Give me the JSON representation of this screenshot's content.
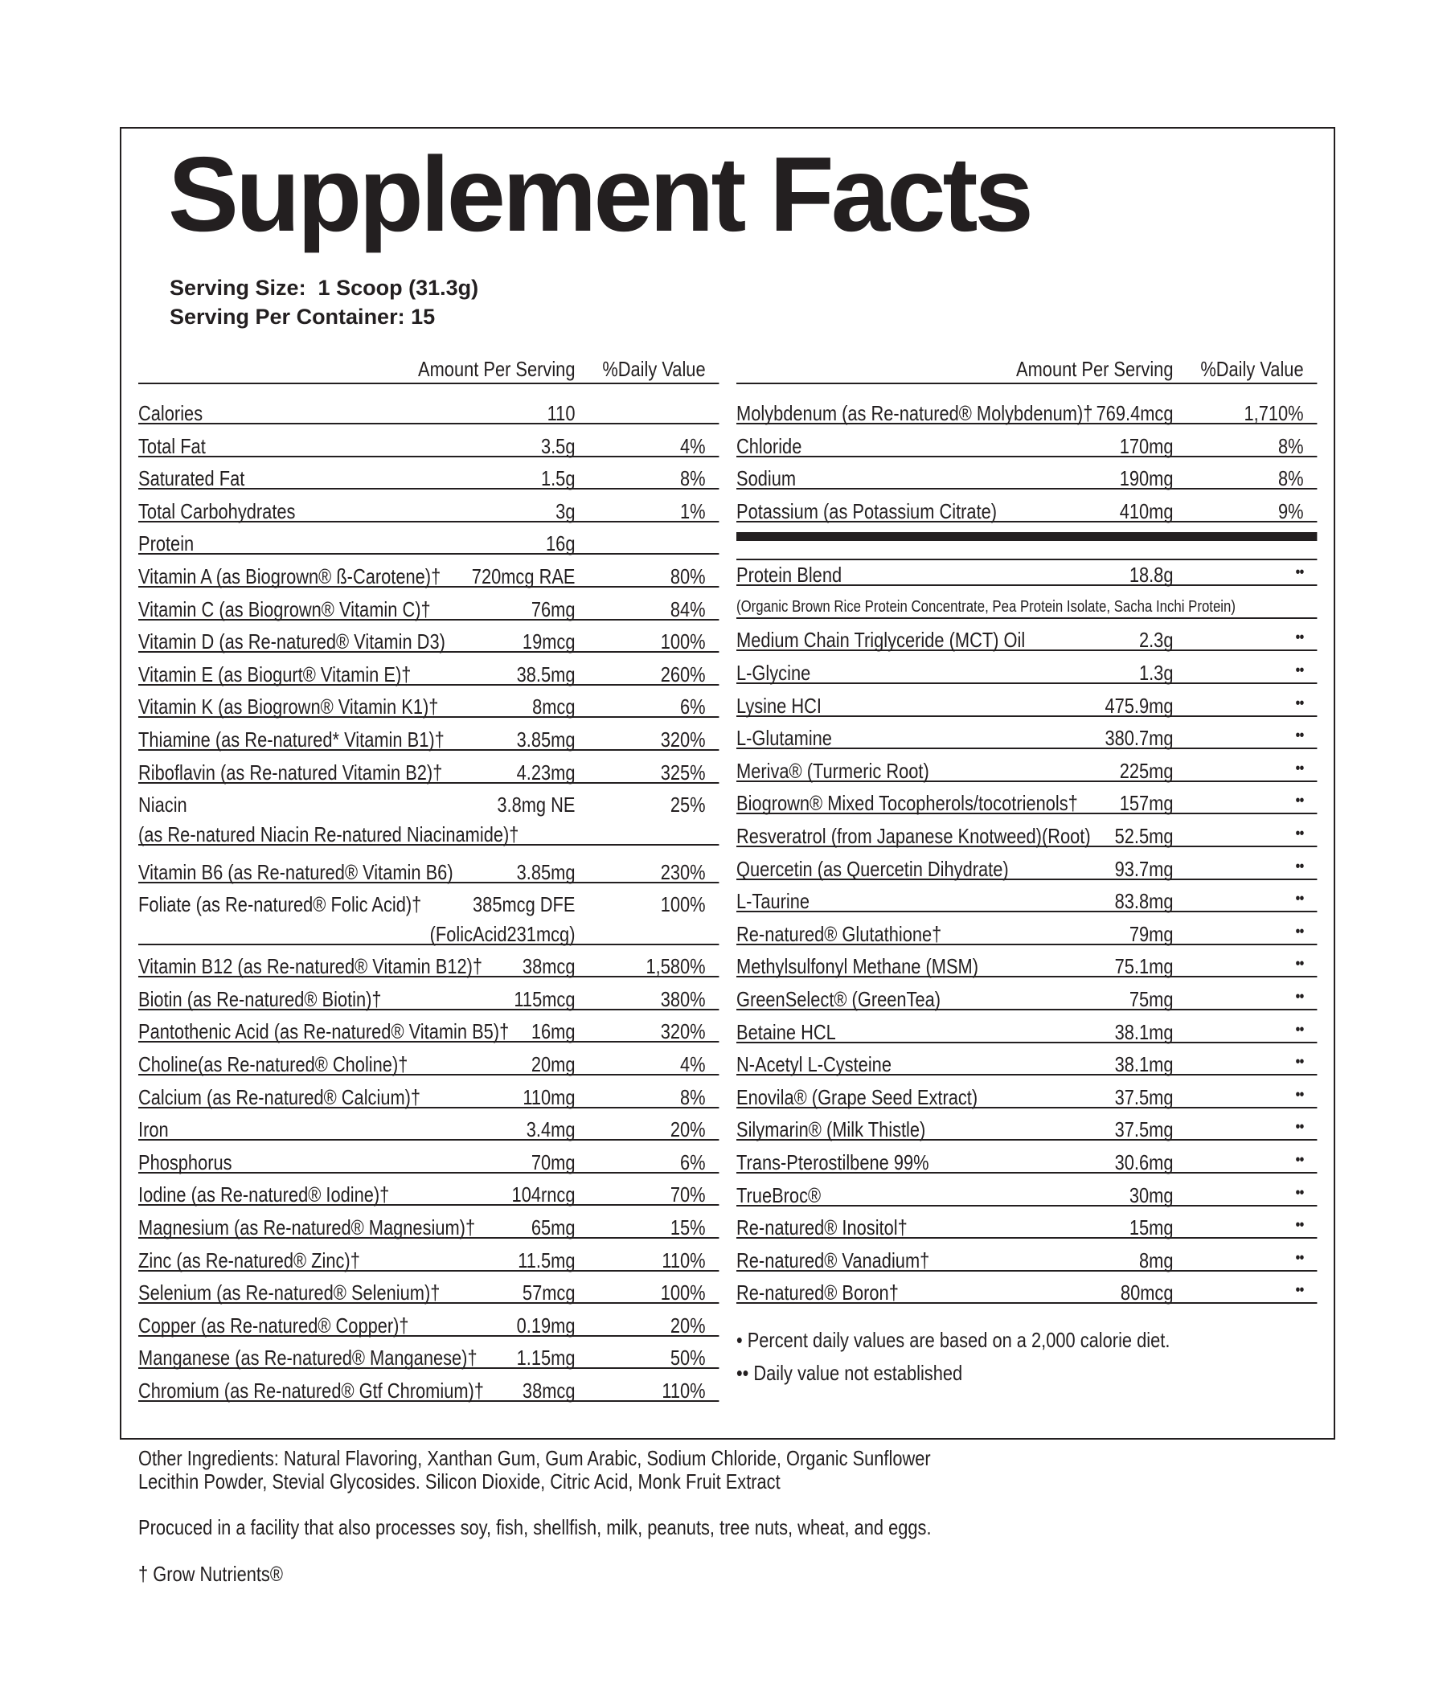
{
  "title": "Supplement Facts",
  "serving_size": "Serving Size:  1 Scoop (31.3g)",
  "servings_per_container": "Serving Per Container: 15",
  "header": {
    "amount": "Amount Per Serving",
    "dv": "%Daily Value"
  },
  "left_rows": [
    {
      "name": "Calories",
      "amount": "110",
      "dv": ""
    },
    {
      "name": "Total Fat",
      "amount": "3.5g",
      "dv": "4%"
    },
    {
      "name": "   Saturated Fat",
      "amount": "1.5g",
      "dv": "8%"
    },
    {
      "name": "Total Carbohydrates",
      "amount": "3g",
      "dv": "1%"
    },
    {
      "name": "Protein",
      "amount": "16g",
      "dv": ""
    },
    {
      "name": "Vitamin A (as Biogrown® ß-Carotene)†",
      "amount": "720mcg RAE",
      "dv": "80%"
    },
    {
      "name": "Vitamin C (as Biogrown® Vitamin C)†",
      "amount": "76mg",
      "dv": "84%"
    },
    {
      "name": "Vitamin D (as Re-natured® Vitamin D3)",
      "amount": "19mcg",
      "dv": "100%"
    },
    {
      "name": "Vitamin E (as Biogurt® Vitamin E)†",
      "amount": "38.5mg",
      "dv": "260%"
    },
    {
      "name": "Vitamin K (as Biogrown® Vitamin K1)†",
      "amount": "8mcg",
      "dv": "6%"
    },
    {
      "name": "Thiamine (as Re-natured* Vitamin B1)†",
      "amount": "3.85mg",
      "dv": "320%"
    },
    {
      "name": "Riboflavin (as Re-natured Vitamin B2)†",
      "amount": "4.23mg",
      "dv": "325%"
    },
    {
      "name": "Niacin",
      "name2": "(as Re-natured Niacin Re-natured Niacinamide)†",
      "amount": "3.8mg  NE",
      "dv": "25%"
    },
    {
      "name": "Vitamin B6 (as Re-natured® Vitamin B6)",
      "amount": "3.85mg",
      "dv": "230%"
    },
    {
      "name": "Foliate (as Re-natured® Folic Acid)†",
      "amount": "385mcg DFE",
      "amount2": "(FolicAcid231mcg)",
      "dv": "100%"
    },
    {
      "name": "Vitamin B12 (as Re-natured® Vitamin B12)†",
      "amount": "38mcg",
      "dv": "1,580%"
    },
    {
      "name": "Biotin (as Re-natured® Biotin)†",
      "amount": "115mcg",
      "dv": "380%"
    },
    {
      "name": "Pantothenic  Acid (as Re-natured® Vitamin B5)†",
      "amount": "16mg",
      "dv": "320%"
    },
    {
      "name": "Choline(as Re-natured® Choline)†",
      "amount": "20mg",
      "dv": "4%"
    },
    {
      "name": "Calcium (as Re-natured® Calcium)†",
      "amount": "110mg",
      "dv": "8%"
    },
    {
      "name": "Iron",
      "amount": "3.4mg",
      "dv": "20%"
    },
    {
      "name": "Phosphorus",
      "amount": "70mg",
      "dv": "6%"
    },
    {
      "name": "Iodine (as Re-natured® Iodine)†",
      "amount": "104rncg",
      "dv": "70%"
    },
    {
      "name": "Magnesium (as Re-natured® Magnesium)†",
      "amount": "65mg",
      "dv": "15%"
    },
    {
      "name": "Zinc (as Re-natured® Zinc)†",
      "amount": "11.5mg",
      "dv": "110%"
    },
    {
      "name": "Selenium (as Re-natured® Selenium)†",
      "amount": "57mcg",
      "dv": "100%"
    },
    {
      "name": "Copper (as Re-natured® Copper)†",
      "amount": "0.19mg",
      "dv": "20%"
    },
    {
      "name": "Manganese (as Re-natured® Manganese)†",
      "amount": "1.15mg",
      "dv": "50%"
    },
    {
      "name": "Chromium (as Re-natured® Gtf Chromium)†",
      "amount": "38mcg",
      "dv": "110%"
    }
  ],
  "right_rows_top": [
    {
      "name": "Molybdenum (as Re-natured® Molybdenum)†",
      "amount": "769.4mcg",
      "dv": "1,710%"
    },
    {
      "name": "Chloride",
      "amount": "170mg",
      "dv": "8%"
    },
    {
      "name": "Sodium",
      "amount": "190mg",
      "dv": "8%"
    },
    {
      "name": "Potassium (as Potassium Citrate)",
      "amount": "410mg",
      "dv": "9%"
    }
  ],
  "protein_blend": {
    "name": "Protein Blend",
    "amount": "18.8g",
    "dv": "••",
    "note": "(Organic Brown Rice Protein Concentrate, Pea Protein Isolate, Sacha Inchi Protein)"
  },
  "right_rows": [
    {
      "name": "Medium Chain Triglyceride (MCT) Oil",
      "amount": "2.3g",
      "dv": "••"
    },
    {
      "name": "L-Glycine",
      "amount": "1.3g",
      "dv": "••"
    },
    {
      "name": "Lysine HCI",
      "amount": "475.9mg",
      "dv": "••"
    },
    {
      "name": "L-Glutamine",
      "amount": "380.7mg",
      "dv": "••"
    },
    {
      "name": "Meriva® (Turmeric Root)",
      "amount": "225mg",
      "dv": "••"
    },
    {
      "name": "Biogrown® Mixed Tocopherols/tocotrienols†",
      "amount": "157mg",
      "dv": "••"
    },
    {
      "name": "Resveratrol (from Japanese Knotweed)(Root)",
      "amount": "52.5mg",
      "dv": "••"
    },
    {
      "name": "Quercetin (as Quercetin Dihydrate)",
      "amount": "93.7mg",
      "dv": "••"
    },
    {
      "name": "L-Taurine",
      "amount": "83.8mg",
      "dv": "••"
    },
    {
      "name": "Re-natured® Glutathione†",
      "amount": "79mg",
      "dv": "••"
    },
    {
      "name": "Methylsulfonyl Methane (MSM)",
      "amount": "75.1mg",
      "dv": "••"
    },
    {
      "name": "GreenSelect® (GreenTea)",
      "amount": "75mg",
      "dv": "••"
    },
    {
      "name": "Betaine HCL",
      "amount": "38.1mg",
      "dv": "••"
    },
    {
      "name": "N-Acetyl L-Cysteine",
      "amount": "38.1mg",
      "dv": "••"
    },
    {
      "name": "Enovila® (Grape Seed Extract)",
      "amount": "37.5mg",
      "dv": "••"
    },
    {
      "name": "Silymarin® (Milk Thistle)",
      "amount": "37.5mg",
      "dv": "••"
    },
    {
      "name": "Trans-Pterostilbene 99%",
      "amount": "30.6mg",
      "dv": "••"
    },
    {
      "name": "TrueBroc®",
      "amount": "30mg",
      "dv": "••"
    },
    {
      "name": "Re-natured® Inositol†",
      "amount": "15mg",
      "dv": "••"
    },
    {
      "name": "Re-natured® Vanadium†",
      "amount": "8mg",
      "dv": "••"
    },
    {
      "name": "Re-natured® Boron†",
      "amount": "80mcg",
      "dv": "••"
    }
  ],
  "footnotes": [
    "• Percent daily values are based on a 2,000 calorie diet.",
    "•• Daily value not established"
  ],
  "other_ingredients": [
    "Other Ingredients: Natural Flavoring, Xanthan Gum, Gum Arabic, Sodium Chloride, Organic Sunflower",
    "Lecithin Powder, Stevial Glycosides. Silicon Dioxide, Citric Acid, Monk Fruit Extract"
  ],
  "allergen": "Procuced in a facility that also processes soy, fish, shellfish, milk, peanuts, tree nuts, wheat, and eggs.",
  "brand_note": "† Grow Nutrients®"
}
